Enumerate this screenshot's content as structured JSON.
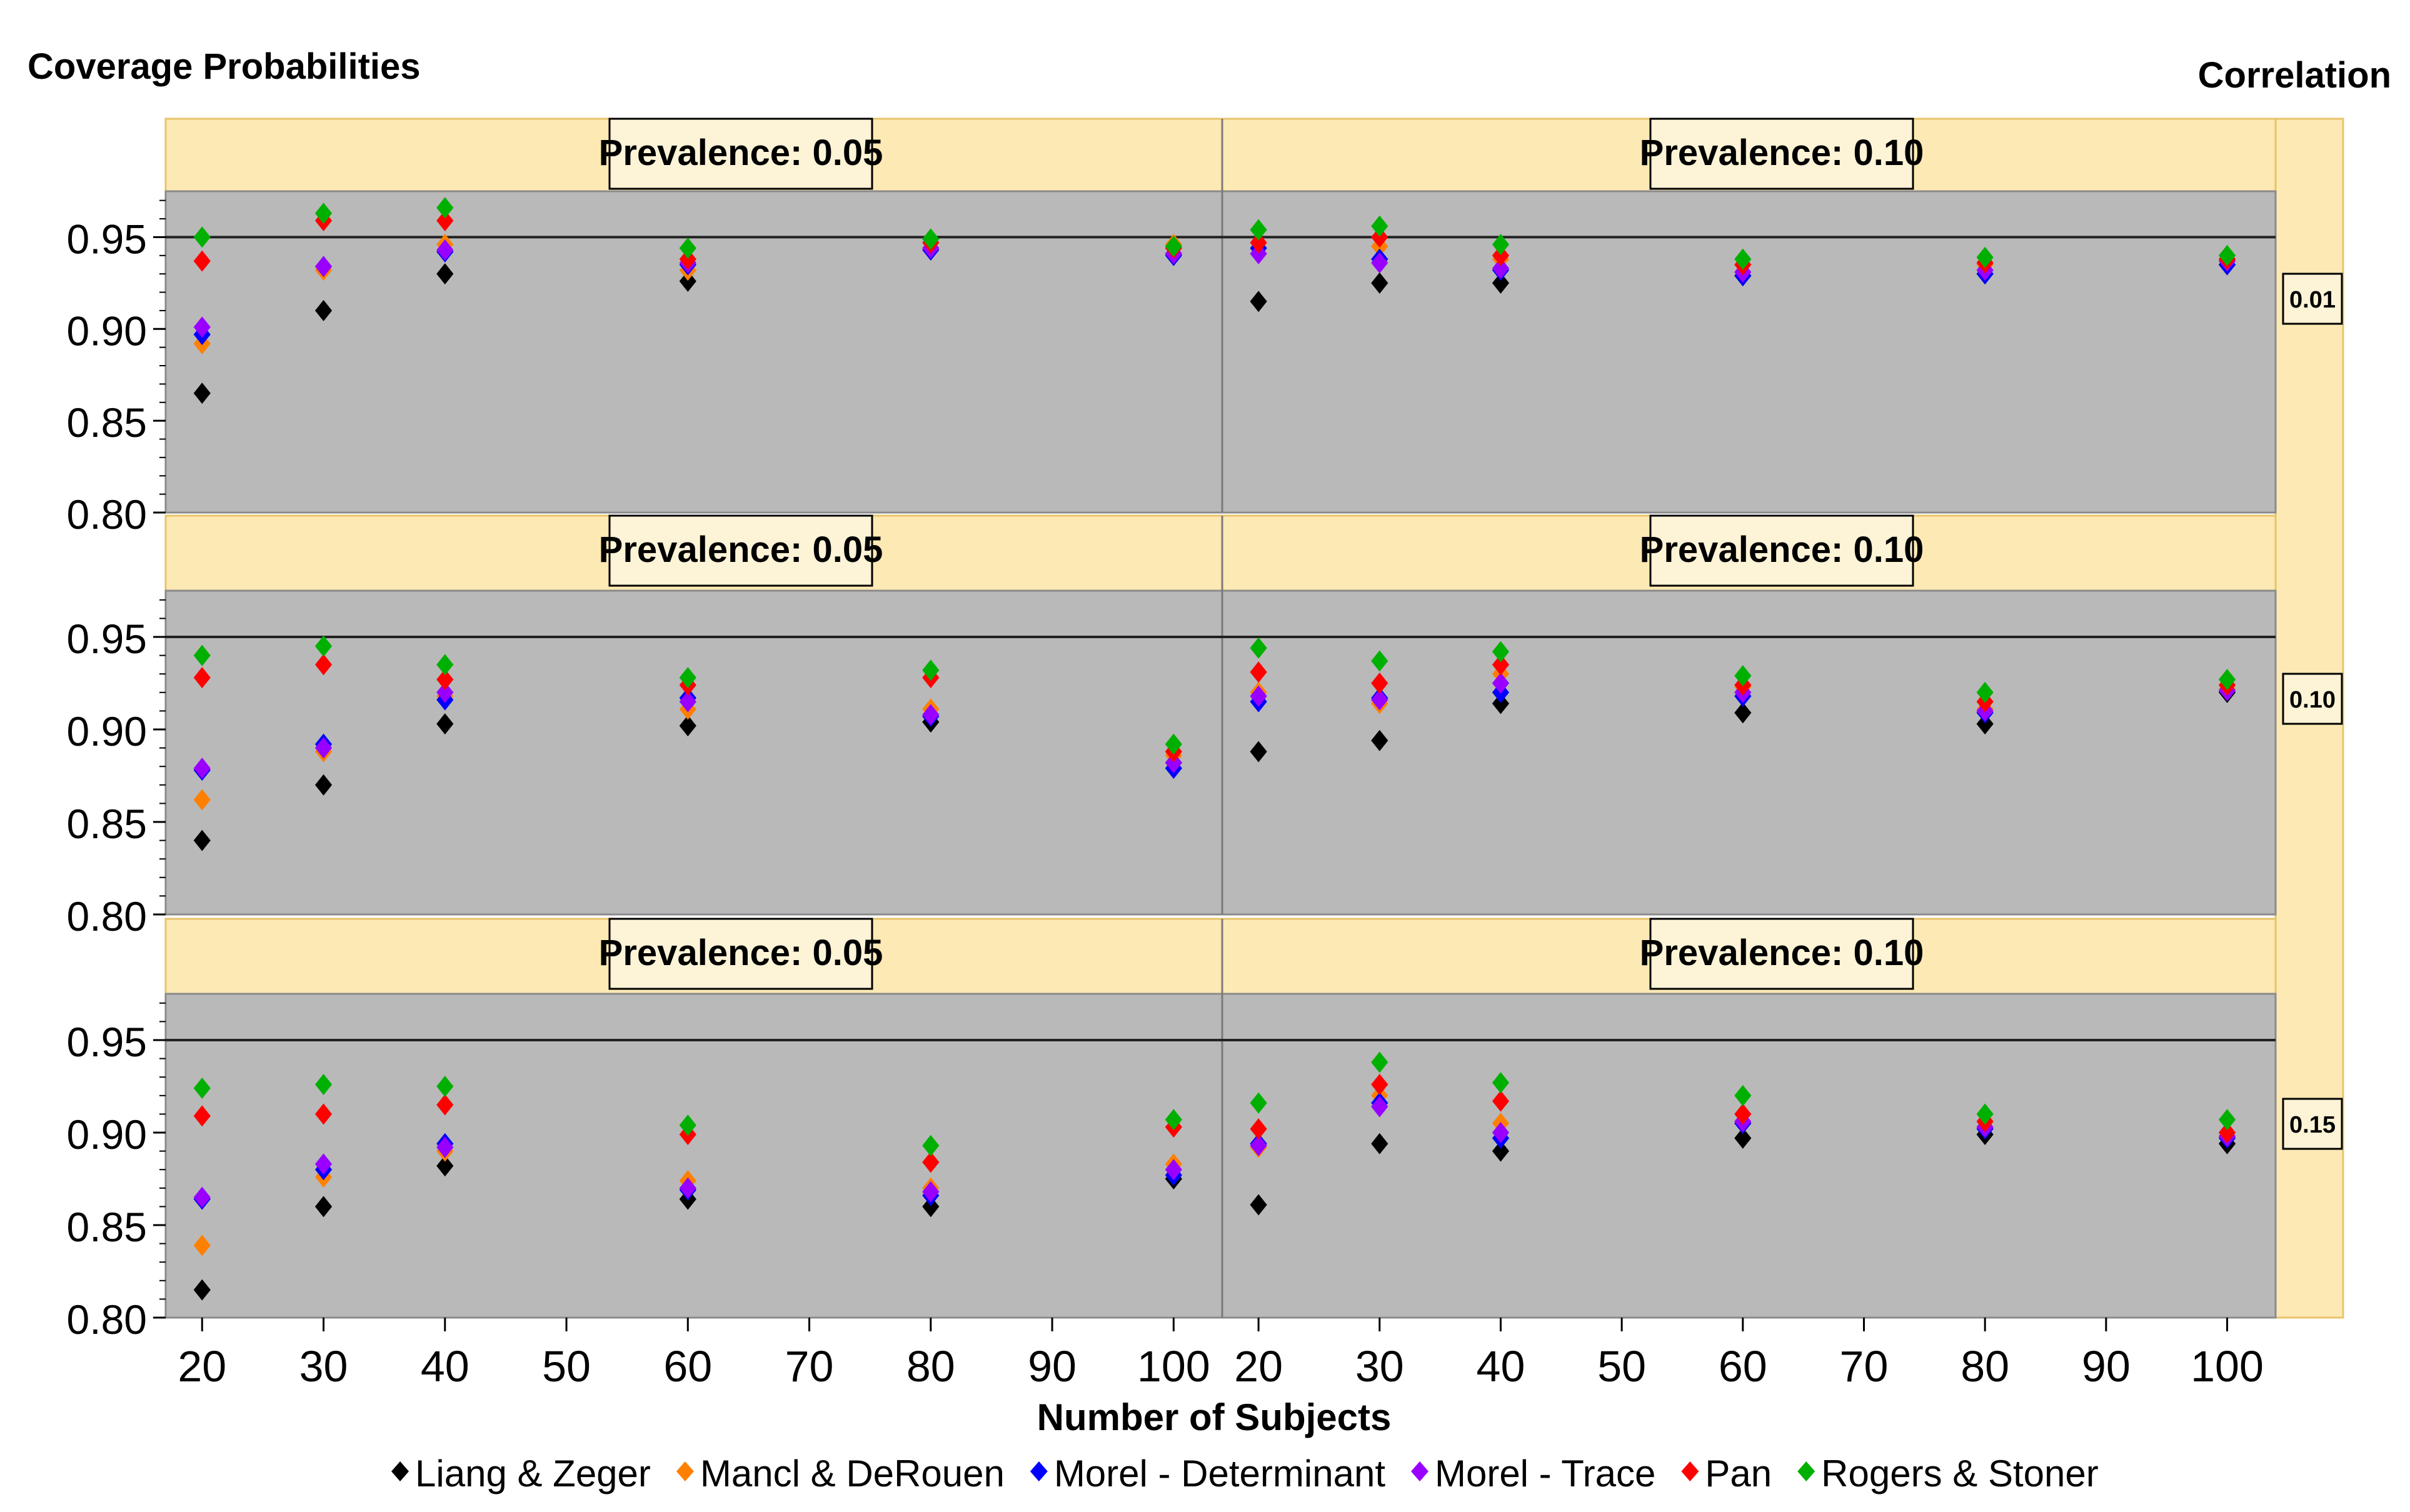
{
  "chart_data": {
    "type": "scatter",
    "title": "Coverage Probabilities",
    "row_group_label": "Correlation",
    "xlabel": "Number of Subjects",
    "ylabel": "",
    "ylim": [
      0.8,
      0.975
    ],
    "xlim": [
      17,
      104
    ],
    "y_ticks": [
      "0.80",
      "0.85",
      "0.90",
      "0.95"
    ],
    "x_ticks": [
      "20",
      "30",
      "40",
      "50",
      "60",
      "70",
      "80",
      "90",
      "100"
    ],
    "reference_line": 0.95,
    "x": [
      20,
      30,
      40,
      60,
      80,
      100
    ],
    "legend": [
      {
        "name": "Liang & Zeger",
        "color": "#000000"
      },
      {
        "name": "Mancl & DeRouen",
        "color": "#ff8000"
      },
      {
        "name": "Morel - Determinant",
        "color": "#0000ff"
      },
      {
        "name": "Morel - Trace",
        "color": "#9900ff"
      },
      {
        "name": "Pan",
        "color": "#ff0000"
      },
      {
        "name": "Rogers & Stoner",
        "color": "#00b000"
      }
    ],
    "rows": [
      {
        "correlation": "0.01",
        "panels": [
          {
            "prevalence": "Prevalence: 0.05",
            "series": {
              "Liang & Zeger": [
                0.865,
                0.91,
                0.93,
                0.926,
                0.944,
                0.941
              ],
              "Mancl & DeRouen": [
                0.892,
                0.932,
                0.946,
                0.932,
                0.944,
                0.946
              ],
              "Morel - Determinant": [
                0.897,
                0.934,
                0.942,
                0.935,
                0.943,
                0.94
              ],
              "Morel - Trace": [
                0.901,
                0.934,
                0.943,
                0.936,
                0.944,
                0.941
              ],
              "Pan": [
                0.937,
                0.959,
                0.959,
                0.938,
                0.947,
                0.944
              ],
              "Rogers & Stoner": [
                0.95,
                0.963,
                0.966,
                0.944,
                0.949,
                0.945
              ]
            }
          },
          {
            "prevalence": "Prevalence: 0.10",
            "series": {
              "Liang & Zeger": [
                0.915,
                0.925,
                0.925,
                0.929,
                0.93,
                0.935
              ],
              "Mancl & DeRouen": [
                0.944,
                0.945,
                0.938,
                0.935,
                0.935,
                0.938
              ],
              "Morel - Determinant": [
                0.944,
                0.938,
                0.932,
                0.929,
                0.93,
                0.935
              ],
              "Morel - Trace": [
                0.941,
                0.936,
                0.933,
                0.931,
                0.932,
                0.937
              ],
              "Pan": [
                0.947,
                0.95,
                0.94,
                0.935,
                0.936,
                0.938
              ],
              "Rogers & Stoner": [
                0.954,
                0.956,
                0.946,
                0.938,
                0.939,
                0.94
              ]
            }
          }
        ]
      },
      {
        "correlation": "0.10",
        "panels": [
          {
            "prevalence": "Prevalence: 0.05",
            "series": {
              "Liang & Zeger": [
                0.84,
                0.87,
                0.903,
                0.902,
                0.904,
                0.882
              ],
              "Mancl & DeRouen": [
                0.862,
                0.888,
                0.918,
                0.911,
                0.911,
                0.886
              ],
              "Morel - Determinant": [
                0.878,
                0.892,
                0.916,
                0.917,
                0.907,
                0.879
              ],
              "Morel - Trace": [
                0.879,
                0.89,
                0.92,
                0.915,
                0.908,
                0.882
              ],
              "Pan": [
                0.928,
                0.935,
                0.927,
                0.924,
                0.928,
                0.888
              ],
              "Rogers & Stoner": [
                0.94,
                0.945,
                0.935,
                0.928,
                0.932,
                0.892
              ]
            }
          },
          {
            "prevalence": "Prevalence: 0.10",
            "series": {
              "Liang & Zeger": [
                0.888,
                0.894,
                0.914,
                0.909,
                0.903,
                0.92
              ],
              "Mancl & DeRouen": [
                0.92,
                0.914,
                0.93,
                0.923,
                0.911,
                0.922
              ],
              "Morel - Determinant": [
                0.915,
                0.917,
                0.92,
                0.918,
                0.909,
                0.921
              ],
              "Morel - Trace": [
                0.918,
                0.916,
                0.925,
                0.92,
                0.91,
                0.921
              ],
              "Pan": [
                0.931,
                0.925,
                0.935,
                0.924,
                0.915,
                0.924
              ],
              "Rogers & Stoner": [
                0.944,
                0.937,
                0.942,
                0.929,
                0.92,
                0.927
              ]
            }
          }
        ]
      },
      {
        "correlation": "0.15",
        "panels": [
          {
            "prevalence": "Prevalence: 0.05",
            "series": {
              "Liang & Zeger": [
                0.815,
                0.86,
                0.882,
                0.864,
                0.86,
                0.875
              ],
              "Mancl & DeRouen": [
                0.839,
                0.876,
                0.89,
                0.874,
                0.87,
                0.883
              ],
              "Morel - Determinant": [
                0.864,
                0.88,
                0.894,
                0.869,
                0.866,
                0.877
              ],
              "Morel - Trace": [
                0.865,
                0.883,
                0.892,
                0.87,
                0.868,
                0.88
              ],
              "Pan": [
                0.909,
                0.91,
                0.915,
                0.899,
                0.884,
                0.903
              ],
              "Rogers & Stoner": [
                0.924,
                0.926,
                0.925,
                0.904,
                0.893,
                0.907
              ]
            }
          },
          {
            "prevalence": "Prevalence: 0.10",
            "series": {
              "Liang & Zeger": [
                0.861,
                0.894,
                0.89,
                0.897,
                0.899,
                0.894
              ],
              "Mancl & DeRouen": [
                0.892,
                0.92,
                0.905,
                0.905,
                0.903,
                0.898
              ],
              "Morel - Determinant": [
                0.894,
                0.916,
                0.897,
                0.905,
                0.902,
                0.897
              ],
              "Morel - Trace": [
                0.893,
                0.914,
                0.9,
                0.906,
                0.903,
                0.898
              ],
              "Pan": [
                0.902,
                0.926,
                0.917,
                0.91,
                0.906,
                0.9
              ],
              "Rogers & Stoner": [
                0.916,
                0.938,
                0.927,
                0.92,
                0.91,
                0.907
              ]
            }
          }
        ]
      }
    ]
  }
}
